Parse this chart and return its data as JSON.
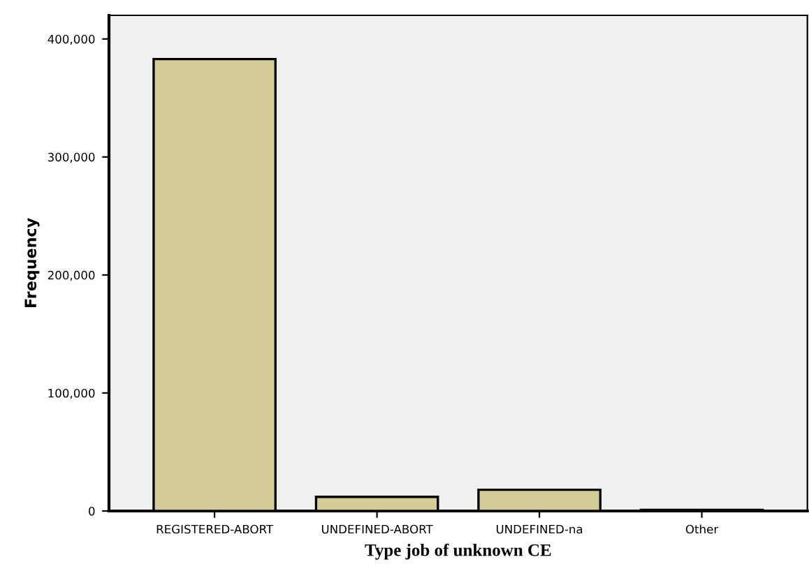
{
  "chart_data": {
    "type": "bar",
    "xlabel": "Type job of unknown CE",
    "ylabel": "Frequency",
    "categories": [
      "REGISTERED-ABORT",
      "UNDEFINED-ABORT",
      "UNDEFINED-na",
      "Other"
    ],
    "values": [
      383000,
      12000,
      18000,
      1000
    ],
    "color": "#d3ce97",
    "ylim": [
      0,
      420000
    ],
    "yticks": [
      {
        "value": 0,
        "label": "0"
      },
      {
        "value": 100000,
        "label": "100,000"
      },
      {
        "value": 200000,
        "label": "200,000"
      },
      {
        "value": 300000,
        "label": "300,000"
      },
      {
        "value": 400000,
        "label": "400,000"
      }
    ],
    "grid": false,
    "legend": false
  }
}
